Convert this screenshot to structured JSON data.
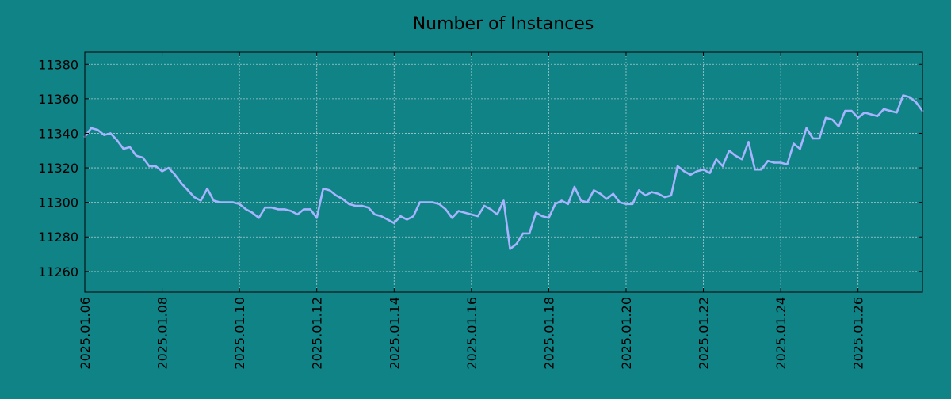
{
  "chart_data": {
    "type": "line",
    "title": "Number of Instances",
    "xlabel": "",
    "ylabel": "",
    "xlim": [
      "2025-01-06",
      "2025-01-27 16:00"
    ],
    "ylim": [
      11248,
      11387
    ],
    "grid": true,
    "x_ticks": [
      "2025.01.06",
      "2025.01.08",
      "2025.01.10",
      "2025.01.12",
      "2025.01.14",
      "2025.01.16",
      "2025.01.18",
      "2025.01.20",
      "2025.01.22",
      "2025.01.24",
      "2025.01.26"
    ],
    "y_ticks": [
      11260,
      11280,
      11300,
      11320,
      11340,
      11360,
      11380
    ],
    "colors": {
      "background": "#108387",
      "line": "#a8b4ff",
      "grid": "#a9c9cc",
      "axes": "#000000"
    },
    "series": [
      {
        "x": [
          "2025-01-06 00:00",
          "2025-01-06 04:00",
          "2025-01-06 08:00",
          "2025-01-06 12:00",
          "2025-01-06 16:00",
          "2025-01-06 20:00",
          "2025-01-07 00:00",
          "2025-01-07 04:00",
          "2025-01-07 08:00",
          "2025-01-07 12:00",
          "2025-01-07 16:00",
          "2025-01-07 20:00",
          "2025-01-08 00:00",
          "2025-01-08 04:00",
          "2025-01-08 08:00",
          "2025-01-08 12:00",
          "2025-01-08 16:00",
          "2025-01-08 20:00",
          "2025-01-09 00:00",
          "2025-01-09 04:00",
          "2025-01-09 08:00",
          "2025-01-09 12:00",
          "2025-01-09 16:00",
          "2025-01-09 20:00",
          "2025-01-10 00:00",
          "2025-01-10 04:00",
          "2025-01-10 08:00",
          "2025-01-10 12:00",
          "2025-01-10 16:00",
          "2025-01-10 20:00",
          "2025-01-11 00:00",
          "2025-01-11 04:00",
          "2025-01-11 08:00",
          "2025-01-11 12:00",
          "2025-01-11 16:00",
          "2025-01-11 20:00",
          "2025-01-12 00:00",
          "2025-01-12 04:00",
          "2025-01-12 08:00",
          "2025-01-12 12:00",
          "2025-01-12 16:00",
          "2025-01-12 20:00",
          "2025-01-13 00:00",
          "2025-01-13 04:00",
          "2025-01-13 08:00",
          "2025-01-13 12:00",
          "2025-01-13 16:00",
          "2025-01-13 20:00",
          "2025-01-14 00:00",
          "2025-01-14 04:00",
          "2025-01-14 08:00",
          "2025-01-14 12:00",
          "2025-01-14 16:00",
          "2025-01-14 20:00",
          "2025-01-15 00:00",
          "2025-01-15 04:00",
          "2025-01-15 08:00",
          "2025-01-15 12:00",
          "2025-01-15 16:00",
          "2025-01-15 20:00",
          "2025-01-16 00:00",
          "2025-01-16 04:00",
          "2025-01-16 08:00",
          "2025-01-16 12:00",
          "2025-01-16 16:00",
          "2025-01-16 20:00",
          "2025-01-17 00:00",
          "2025-01-17 04:00",
          "2025-01-17 08:00",
          "2025-01-17 12:00",
          "2025-01-17 16:00",
          "2025-01-17 20:00",
          "2025-01-18 00:00",
          "2025-01-18 04:00",
          "2025-01-18 08:00",
          "2025-01-18 12:00",
          "2025-01-18 16:00",
          "2025-01-18 20:00",
          "2025-01-19 00:00",
          "2025-01-19 04:00",
          "2025-01-19 08:00",
          "2025-01-19 12:00",
          "2025-01-19 16:00",
          "2025-01-19 20:00",
          "2025-01-20 00:00",
          "2025-01-20 04:00",
          "2025-01-20 08:00",
          "2025-01-20 12:00",
          "2025-01-20 16:00",
          "2025-01-20 20:00",
          "2025-01-21 00:00",
          "2025-01-21 04:00",
          "2025-01-21 08:00",
          "2025-01-21 12:00",
          "2025-01-21 16:00",
          "2025-01-21 20:00",
          "2025-01-22 00:00",
          "2025-01-22 04:00",
          "2025-01-22 08:00",
          "2025-01-22 12:00",
          "2025-01-22 16:00",
          "2025-01-22 20:00",
          "2025-01-23 00:00",
          "2025-01-23 04:00",
          "2025-01-23 08:00",
          "2025-01-23 12:00",
          "2025-01-23 16:00",
          "2025-01-23 20:00",
          "2025-01-24 00:00",
          "2025-01-24 04:00",
          "2025-01-24 08:00",
          "2025-01-24 12:00",
          "2025-01-24 16:00",
          "2025-01-24 20:00",
          "2025-01-25 00:00",
          "2025-01-25 04:00",
          "2025-01-25 08:00",
          "2025-01-25 12:00",
          "2025-01-25 16:00",
          "2025-01-25 20:00",
          "2025-01-26 00:00",
          "2025-01-26 04:00",
          "2025-01-26 08:00",
          "2025-01-26 12:00",
          "2025-01-26 16:00",
          "2025-01-26 20:00",
          "2025-01-27 00:00",
          "2025-01-27 04:00",
          "2025-01-27 08:00",
          "2025-01-27 12:00",
          "2025-01-27 16:00"
        ],
        "values": [
          11338,
          11343,
          11342,
          11339,
          11340,
          11336,
          11331,
          11332,
          11327,
          11326,
          11321,
          11321,
          11318,
          11320,
          11316,
          11311,
          11307,
          11303,
          11301,
          11308,
          11301,
          11300,
          11300,
          11300,
          11299,
          11296,
          11294,
          11291,
          11297,
          11297,
          11296,
          11296,
          11295,
          11293,
          11296,
          11296,
          11291,
          11308,
          11307,
          11304,
          11302,
          11299,
          11298,
          11298,
          11297,
          11293,
          11292,
          11290,
          11288,
          11292,
          11290,
          11292,
          11300,
          11300,
          11300,
          11299,
          11296,
          11291,
          11295,
          11294,
          11293,
          11292,
          11298,
          11296,
          11293,
          11301,
          11273,
          11276,
          11282,
          11282,
          11294,
          11292,
          11291,
          11299,
          11301,
          11299,
          11309,
          11301,
          11300,
          11307,
          11305,
          11302,
          11305,
          11300,
          11299,
          11299,
          11307,
          11304,
          11306,
          11305,
          11303,
          11304,
          11321,
          11318,
          11316,
          11318,
          11319,
          11317,
          11325,
          11321,
          11330,
          11327,
          11325,
          11335,
          11319,
          11319,
          11324,
          11323,
          11323,
          11322,
          11334,
          11331,
          11343,
          11337,
          11337,
          11349,
          11348,
          11344,
          11353,
          11353,
          11349,
          11352,
          11351,
          11350,
          11354,
          11353,
          11352,
          11362,
          11361,
          11358,
          11353
        ]
      }
    ]
  }
}
